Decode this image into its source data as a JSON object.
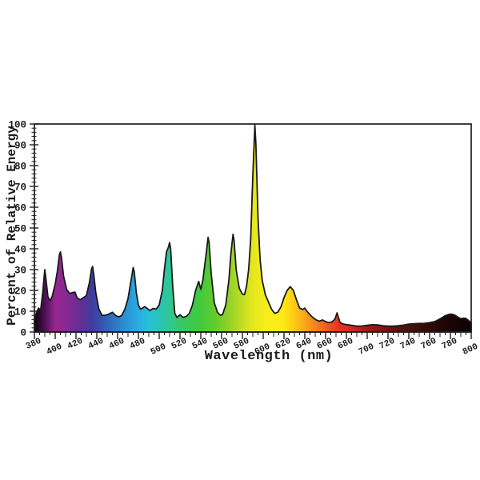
{
  "figure": {
    "background": "#ffffff",
    "frame_color": "#1f1f1f",
    "curve_stroke": "#1a1a1a",
    "text_color": "#1a1a1a"
  },
  "chart_data": {
    "type": "area",
    "title": "",
    "xlabel": "Wavelength (nm)",
    "ylabel": "Percent of Relative Energy",
    "xlim": [
      380,
      800
    ],
    "ylim": [
      0,
      100
    ],
    "grid": false,
    "legend": false,
    "x_major_tick_step": 20,
    "x_minor_tick_step": 5,
    "y_major_tick_step": 10,
    "y_minor_tick_step": 2,
    "x_tick_labels": [
      380,
      400,
      420,
      440,
      460,
      480,
      500,
      520,
      540,
      560,
      580,
      600,
      620,
      640,
      660,
      680,
      700,
      720,
      740,
      760,
      780,
      800
    ],
    "y_tick_labels": [
      0,
      10,
      20,
      30,
      40,
      50,
      60,
      70,
      80,
      90,
      100
    ],
    "notable_peaks": [
      {
        "nm": 390,
        "pct": 30
      },
      {
        "nm": 405,
        "pct": 38.5
      },
      {
        "nm": 436,
        "pct": 31.5
      },
      {
        "nm": 475,
        "pct": 31
      },
      {
        "nm": 510,
        "pct": 43
      },
      {
        "nm": 547,
        "pct": 45.5
      },
      {
        "nm": 571,
        "pct": 47
      },
      {
        "nm": 592,
        "pct": 99.5
      },
      {
        "nm": 626,
        "pct": 21.8
      },
      {
        "nm": 671,
        "pct": 9.2
      },
      {
        "nm": 781,
        "pct": 8.6
      }
    ],
    "points": [
      [
        380,
        6
      ],
      [
        382,
        9.5
      ],
      [
        384,
        11.5
      ],
      [
        386,
        10.5
      ],
      [
        388,
        19
      ],
      [
        390,
        30
      ],
      [
        391,
        26
      ],
      [
        393,
        17
      ],
      [
        395,
        15
      ],
      [
        397,
        17
      ],
      [
        400,
        23
      ],
      [
        402,
        29
      ],
      [
        404,
        37
      ],
      [
        405,
        38.5
      ],
      [
        406,
        36
      ],
      [
        408,
        27
      ],
      [
        411,
        20.5
      ],
      [
        414,
        18.5
      ],
      [
        417,
        19
      ],
      [
        419,
        19.2
      ],
      [
        421,
        16.5
      ],
      [
        424,
        15.5
      ],
      [
        427,
        16.5
      ],
      [
        430,
        17.5
      ],
      [
        433,
        24
      ],
      [
        435,
        30.5
      ],
      [
        436,
        31.5
      ],
      [
        437,
        28
      ],
      [
        439,
        19
      ],
      [
        442,
        11
      ],
      [
        445,
        8
      ],
      [
        448,
        8
      ],
      [
        451,
        8.5
      ],
      [
        455,
        9.5
      ],
      [
        458,
        8
      ],
      [
        461,
        7.2
      ],
      [
        464,
        8
      ],
      [
        467,
        11
      ],
      [
        470,
        16
      ],
      [
        473,
        25
      ],
      [
        475,
        31
      ],
      [
        476,
        29
      ],
      [
        478,
        19
      ],
      [
        480,
        13
      ],
      [
        482,
        11
      ],
      [
        484,
        11.5
      ],
      [
        486,
        12.2
      ],
      [
        488,
        11.5
      ],
      [
        491,
        10.3
      ],
      [
        494,
        11.3
      ],
      [
        497,
        11
      ],
      [
        500,
        13
      ],
      [
        503,
        20
      ],
      [
        505,
        30
      ],
      [
        507,
        38.5
      ],
      [
        509,
        41
      ],
      [
        510,
        43
      ],
      [
        511,
        40
      ],
      [
        513,
        22
      ],
      [
        515,
        9
      ],
      [
        517,
        7
      ],
      [
        520,
        8.3
      ],
      [
        523,
        7
      ],
      [
        526,
        7.5
      ],
      [
        529,
        9
      ],
      [
        532,
        13
      ],
      [
        535,
        20
      ],
      [
        538,
        24.3
      ],
      [
        540,
        20.5
      ],
      [
        542,
        25
      ],
      [
        545,
        37
      ],
      [
        547,
        45.5
      ],
      [
        548,
        43
      ],
      [
        550,
        28
      ],
      [
        553,
        14
      ],
      [
        556,
        9.5
      ],
      [
        559,
        8
      ],
      [
        561,
        8.5
      ],
      [
        564,
        13
      ],
      [
        567,
        25
      ],
      [
        569,
        38
      ],
      [
        571,
        47
      ],
      [
        572,
        44
      ],
      [
        574,
        30
      ],
      [
        577,
        21
      ],
      [
        580,
        18.2
      ],
      [
        582,
        18
      ],
      [
        584,
        22
      ],
      [
        586,
        30
      ],
      [
        588,
        45
      ],
      [
        590,
        75
      ],
      [
        592,
        99.5
      ],
      [
        593,
        90
      ],
      [
        595,
        55
      ],
      [
        597,
        35
      ],
      [
        599,
        25
      ],
      [
        602,
        18
      ],
      [
        605,
        14.5
      ],
      [
        608,
        11
      ],
      [
        611,
        9
      ],
      [
        614,
        9.5
      ],
      [
        617,
        12
      ],
      [
        620,
        16.5
      ],
      [
        623,
        20
      ],
      [
        626,
        21.8
      ],
      [
        629,
        20
      ],
      [
        632,
        15.5
      ],
      [
        635,
        11.5
      ],
      [
        638,
        10.8
      ],
      [
        640,
        11.5
      ],
      [
        642,
        10
      ],
      [
        645,
        8.3
      ],
      [
        648,
        6.8
      ],
      [
        651,
        5.8
      ],
      [
        654,
        5.2
      ],
      [
        657,
        5.8
      ],
      [
        660,
        5
      ],
      [
        663,
        4.5
      ],
      [
        666,
        4.8
      ],
      [
        669,
        6.2
      ],
      [
        671,
        9.2
      ],
      [
        672,
        7.5
      ],
      [
        674,
        4.5
      ],
      [
        677,
        3.8
      ],
      [
        681,
        3.5
      ],
      [
        685,
        3.2
      ],
      [
        690,
        2.8
      ],
      [
        695,
        2.9
      ],
      [
        700,
        3.2
      ],
      [
        705,
        3.5
      ],
      [
        710,
        3.4
      ],
      [
        715,
        3
      ],
      [
        720,
        2.8
      ],
      [
        725,
        2.8
      ],
      [
        730,
        3
      ],
      [
        735,
        3.3
      ],
      [
        740,
        3.8
      ],
      [
        745,
        4
      ],
      [
        750,
        4.1
      ],
      [
        755,
        4.2
      ],
      [
        760,
        4.5
      ],
      [
        765,
        5
      ],
      [
        770,
        6.3
      ],
      [
        775,
        7.8
      ],
      [
        778,
        8.4
      ],
      [
        781,
        8.6
      ],
      [
        784,
        8.2
      ],
      [
        787,
        7.2
      ],
      [
        790,
        6.4
      ],
      [
        793,
        6.7
      ],
      [
        795,
        6.5
      ],
      [
        798,
        5.3
      ],
      [
        800,
        4.5
      ]
    ],
    "spectrum_gradient": [
      {
        "nm": 380,
        "color": "#0a0208"
      },
      {
        "nm": 390,
        "color": "#4b1155"
      },
      {
        "nm": 400,
        "color": "#97278f"
      },
      {
        "nm": 408,
        "color": "#8c2994"
      },
      {
        "nm": 415,
        "color": "#7c2a92"
      },
      {
        "nm": 425,
        "color": "#632e95"
      },
      {
        "nm": 436,
        "color": "#3f3c9e"
      },
      {
        "nm": 450,
        "color": "#2f63b8"
      },
      {
        "nm": 465,
        "color": "#2c8ccd"
      },
      {
        "nm": 478,
        "color": "#29a8e0"
      },
      {
        "nm": 490,
        "color": "#28c0d8"
      },
      {
        "nm": 500,
        "color": "#27c4b4"
      },
      {
        "nm": 510,
        "color": "#2fc795"
      },
      {
        "nm": 522,
        "color": "#38c75f"
      },
      {
        "nm": 538,
        "color": "#3fc93e"
      },
      {
        "nm": 552,
        "color": "#5ecb2f"
      },
      {
        "nm": 565,
        "color": "#8ad02a"
      },
      {
        "nm": 578,
        "color": "#bcdb23"
      },
      {
        "nm": 590,
        "color": "#e3e61d"
      },
      {
        "nm": 602,
        "color": "#f7ed1a"
      },
      {
        "nm": 618,
        "color": "#fdeb14"
      },
      {
        "nm": 628,
        "color": "#fcd016"
      },
      {
        "nm": 640,
        "color": "#f9a61b"
      },
      {
        "nm": 652,
        "color": "#f47c20"
      },
      {
        "nm": 663,
        "color": "#ef5323"
      },
      {
        "nm": 672,
        "color": "#e93425"
      },
      {
        "nm": 682,
        "color": "#d82a20"
      },
      {
        "nm": 695,
        "color": "#b01f17"
      },
      {
        "nm": 710,
        "color": "#8a1812"
      },
      {
        "nm": 730,
        "color": "#5c100b"
      },
      {
        "nm": 755,
        "color": "#370a06"
      },
      {
        "nm": 775,
        "color": "#1f0504"
      },
      {
        "nm": 800,
        "color": "#0b0202"
      }
    ]
  }
}
